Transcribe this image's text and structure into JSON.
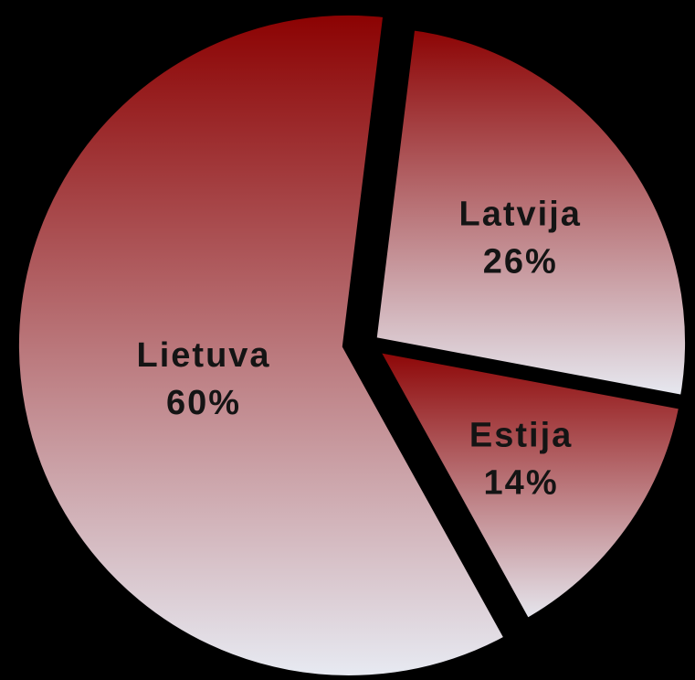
{
  "chart_data": {
    "type": "pie",
    "labels": [
      "Latvija",
      "Estija",
      "Lietuva"
    ],
    "values": [
      26,
      14,
      60
    ],
    "value_labels": [
      "26%",
      "14%",
      "60%"
    ],
    "exploded": true,
    "background": "#000000",
    "colors": {
      "gradient_top": "#8b0000",
      "gradient_bottom": "#e8ecf4"
    }
  }
}
